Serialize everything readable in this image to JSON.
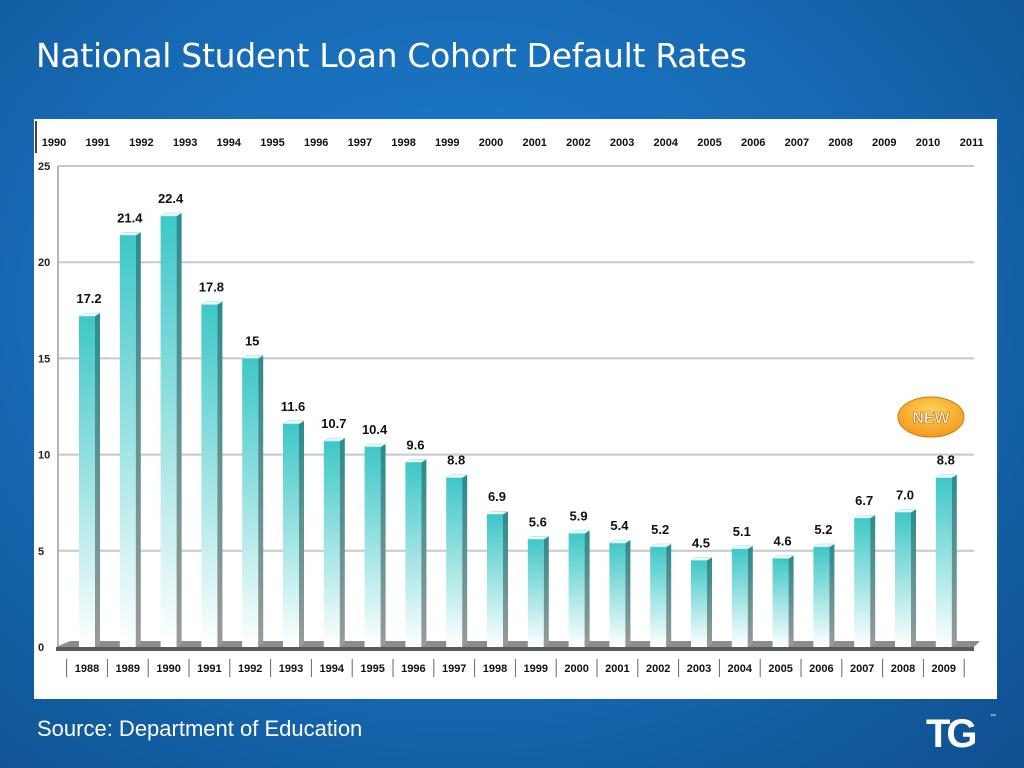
{
  "slide": {
    "title": "National Student Loan Cohort Default Rates",
    "source": "Source: Department of Education",
    "logo": "TG",
    "logo_tm": "™"
  },
  "colors": {
    "background": "#1669b3",
    "bar_top": "#3ec7c7",
    "bar_bottom": "#ffffff",
    "bar_side": "#2a8c8c",
    "grid": "#c8c8c8",
    "badge": "#f39a1a"
  },
  "chart_data": {
    "type": "bar",
    "categories": [
      "1988",
      "1989",
      "1990",
      "1991",
      "1992",
      "1993",
      "1994",
      "1995",
      "1996",
      "1997",
      "1998",
      "1999",
      "2000",
      "2001",
      "2002",
      "2003",
      "2004",
      "2005",
      "2006",
      "2007",
      "2008",
      "2009"
    ],
    "top_axis_labels": [
      "1990",
      "1991",
      "1992",
      "1993",
      "1994",
      "1995",
      "1996",
      "1997",
      "1998",
      "1999",
      "2000",
      "2001",
      "2002",
      "2003",
      "2004",
      "2005",
      "2006",
      "2007",
      "2008",
      "2009",
      "2010",
      "2011"
    ],
    "values": [
      17.2,
      21.4,
      22.4,
      17.8,
      15,
      11.6,
      10.7,
      10.4,
      9.6,
      8.8,
      6.9,
      5.6,
      5.9,
      5.4,
      5.2,
      4.5,
      5.1,
      4.6,
      5.2,
      6.7,
      7.0,
      8.8
    ],
    "value_labels": [
      "17.2",
      "21.4",
      "22.4",
      "17.8",
      "15",
      "11.6",
      "10.7",
      "10.4",
      "9.6",
      "8.8",
      "6.9",
      "5.6",
      "5.9",
      "5.4",
      "5.2",
      "4.5",
      "5.1",
      "4.6",
      "5.2",
      "6.7",
      "7.0",
      "8.8"
    ],
    "yticks": [
      "0",
      "5",
      "10",
      "15",
      "20",
      "25"
    ],
    "ylim": [
      0,
      25
    ],
    "grid": true,
    "badge_text": "NEW",
    "title": "",
    "xlabel": "",
    "ylabel": ""
  }
}
